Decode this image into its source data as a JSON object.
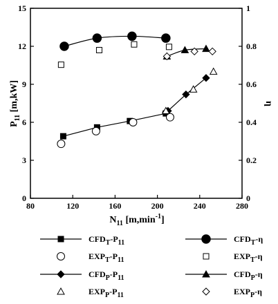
{
  "chart_data": {
    "type": "line",
    "x_axis": {
      "label": "N",
      "label_sub": "11",
      "label_unit": " [m,min",
      "label_sup": "-1",
      "label_end": "]",
      "range": [
        80,
        280
      ],
      "ticks": [
        80,
        120,
        160,
        200,
        240,
        280
      ]
    },
    "y_left": {
      "label": "P",
      "label_sub": "11",
      "label_unit": " [m,kW]",
      "range": [
        0,
        15
      ],
      "ticks": [
        0,
        3,
        6,
        9,
        12,
        15
      ]
    },
    "y_right": {
      "label": "η",
      "range": [
        0,
        1
      ],
      "ticks": [
        0,
        0.2,
        0.4,
        0.6,
        0.8,
        1
      ],
      "tick_labels": [
        "0",
        "0.2",
        "0.4",
        "0.6",
        "0.8",
        "1"
      ]
    },
    "series": [
      {
        "name": "CFDT-P11",
        "axis": "left",
        "marker": "filled-square",
        "line": true,
        "smooth": false,
        "x": [
          111,
          143,
          174,
          208
        ],
        "y": [
          4.9,
          5.6,
          6.1,
          6.7
        ]
      },
      {
        "name": "EXPT-P11",
        "axis": "left",
        "marker": "open-circle",
        "line": false,
        "x": [
          109,
          142,
          177,
          212
        ],
        "y": [
          4.3,
          5.3,
          6.0,
          6.4
        ]
      },
      {
        "name": "CFDP-P11",
        "axis": "left",
        "marker": "filled-diamond",
        "line": true,
        "smooth": false,
        "x": [
          208,
          210,
          227,
          246
        ],
        "y": [
          6.8,
          6.9,
          8.2,
          9.5
        ]
      },
      {
        "name": "EXPP-P11",
        "axis": "left",
        "marker": "open-triangle",
        "line": false,
        "x": [
          208,
          234,
          253
        ],
        "y": [
          6.9,
          8.6,
          10.0
        ]
      },
      {
        "name": "CFDT-η",
        "axis": "right",
        "marker": "filled-circle",
        "line": true,
        "smooth": true,
        "x": [
          112,
          143,
          176,
          208
        ],
        "y": [
          0.8,
          0.843,
          0.853,
          0.843
        ]
      },
      {
        "name": "EXPT-η",
        "axis": "right",
        "marker": "open-square",
        "line": false,
        "x": [
          109,
          145,
          178,
          211
        ],
        "y": [
          0.703,
          0.78,
          0.81,
          0.797
        ]
      },
      {
        "name": "CFDP-η",
        "axis": "right",
        "marker": "filled-triangle",
        "line": true,
        "smooth": true,
        "x": [
          209,
          226,
          246
        ],
        "y": [
          0.747,
          0.78,
          0.787
        ]
      },
      {
        "name": "EXPP-η",
        "axis": "right",
        "marker": "open-diamond",
        "line": false,
        "x": [
          209,
          235,
          252
        ],
        "y": [
          0.747,
          0.773,
          0.773
        ]
      }
    ],
    "legend": {
      "placement": "below",
      "entries": [
        {
          "series": "CFDT-P11",
          "base": "CFD",
          "sub": "T",
          "suffix": "-P",
          "suffix_sub": "11"
        },
        {
          "series": "CFDT-η",
          "base": "CFD",
          "sub": "T",
          "suffix": "-η",
          "suffix_sub": ""
        },
        {
          "series": "EXPT-P11",
          "base": "EXP",
          "sub": "T",
          "suffix": "-P",
          "suffix_sub": "11"
        },
        {
          "series": "EXPT-η",
          "base": "EXP",
          "sub": "T",
          "suffix": "-η",
          "suffix_sub": ""
        },
        {
          "series": "CFDP-P11",
          "base": "CFD",
          "sub": "P",
          "suffix": "-P",
          "suffix_sub": "11"
        },
        {
          "series": "CFDP-η",
          "base": "CFD",
          "sub": "P",
          "suffix": "-η",
          "suffix_sub": ""
        },
        {
          "series": "EXPP-P11",
          "base": "EXP",
          "sub": "P",
          "suffix": "-P",
          "suffix_sub": "11"
        },
        {
          "series": "EXPP-η",
          "base": "EXP",
          "sub": "P",
          "suffix": "-η",
          "suffix_sub": ""
        }
      ]
    },
    "grid": false
  }
}
